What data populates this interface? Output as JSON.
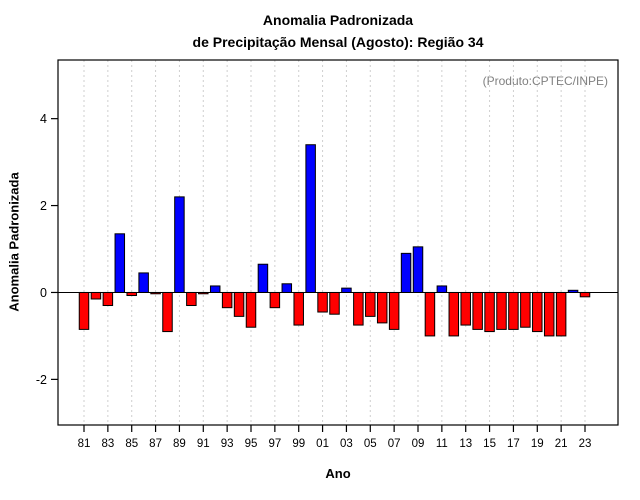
{
  "chart_data": {
    "type": "bar",
    "title_line1": "Anomalia Padronizada",
    "title_line2": "de Precipitação Mensal (Agosto): Região 34",
    "annotation": "(Produto:CPTEC/INPE)",
    "xlabel": "Ano",
    "ylabel": "Anomalia Padronizada",
    "years": [
      1981,
      1982,
      1983,
      1984,
      1985,
      1986,
      1987,
      1988,
      1989,
      1990,
      1991,
      1992,
      1993,
      1994,
      1995,
      1996,
      1997,
      1998,
      1999,
      2000,
      2001,
      2002,
      2003,
      2004,
      2005,
      2006,
      2007,
      2008,
      2009,
      2010,
      2011,
      2012,
      2013,
      2014,
      2015,
      2016,
      2017,
      2018,
      2019,
      2020,
      2021,
      2022,
      2023
    ],
    "values": [
      -0.85,
      -0.15,
      -0.3,
      1.35,
      -0.07,
      0.45,
      -0.03,
      -0.9,
      2.2,
      -0.3,
      -0.03,
      0.15,
      -0.35,
      -0.55,
      -0.8,
      0.65,
      -0.35,
      0.2,
      -0.75,
      3.4,
      -0.45,
      -0.5,
      0.1,
      -0.75,
      -0.55,
      -0.7,
      -0.85,
      0.9,
      1.05,
      -1.0,
      0.15,
      -1.0,
      -0.75,
      -0.85,
      -0.9,
      -0.85,
      -0.85,
      -0.8,
      -0.9,
      -1.0,
      -1.0,
      0.05,
      -0.1
    ],
    "x_tick_labels": [
      "81",
      "83",
      "85",
      "87",
      "89",
      "91",
      "93",
      "95",
      "97",
      "99",
      "01",
      "03",
      "05",
      "07",
      "09",
      "11",
      "13",
      "15",
      "17",
      "19",
      "21",
      "23"
    ],
    "y_ticks": [
      -2,
      0,
      2,
      4
    ],
    "ylim": [
      -3.05,
      5.35
    ],
    "grid": true,
    "legend": "none",
    "positive_color": "#0000FF",
    "negative_color": "#FF0000",
    "bar_stroke": "#000000",
    "grid_color": "#CFCFCF"
  }
}
